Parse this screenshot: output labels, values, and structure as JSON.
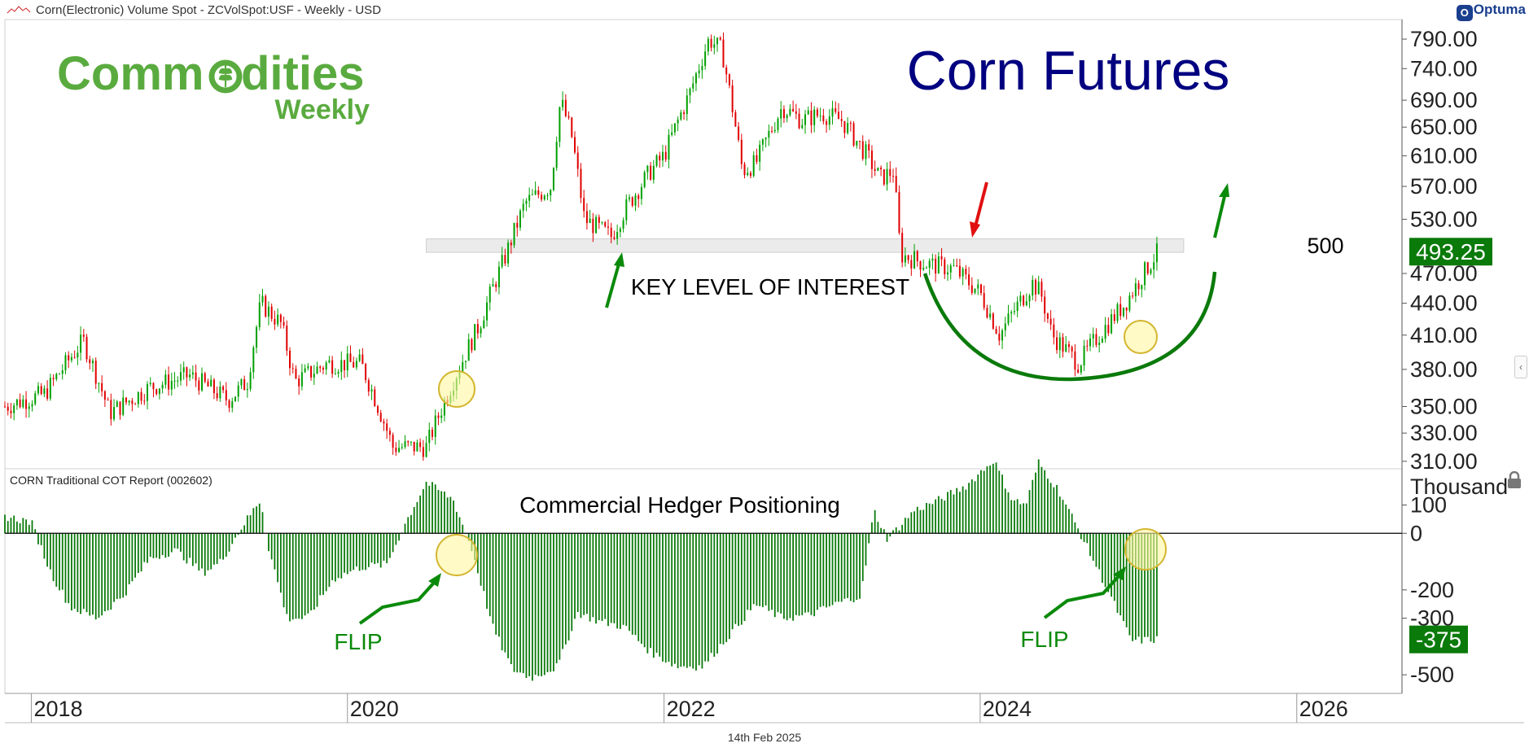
{
  "header": {
    "title": "Corn(Electronic) Volume Spot - ZCVolSpot:USF - Weekly - USD",
    "brand": "Optuma"
  },
  "footer": {
    "date": "14th Feb 2025"
  },
  "logo": {
    "line1a": "Comm",
    "line1b": "dities",
    "line2": "Weekly",
    "color": "#5aab3f"
  },
  "colors": {
    "up": "#00a000",
    "down": "#e00000",
    "cot": "#0a7a0a",
    "title": "#000080",
    "arrow_green": "#0a8a0a",
    "arrow_red": "#e01010",
    "price_badge": "#0a7a0a"
  },
  "chart_data": [
    {
      "type": "candlestick",
      "title": "Corn Futures",
      "frequency": "Weekly",
      "unit": "USD",
      "x_range": [
        "2017-11-01",
        "2026-09-01"
      ],
      "x_ticks": [
        "2018",
        "2020",
        "2022",
        "2024",
        "2026"
      ],
      "y_ticks": [
        "790.00",
        "740.00",
        "690.00",
        "650.00",
        "610.00",
        "570.00",
        "530.00",
        "470.00",
        "440.00",
        "410.00",
        "380.00",
        "350.00",
        "330.00",
        "310.00"
      ],
      "y_scale": "log",
      "ylim": [
        306,
        825
      ],
      "last_price": "493.25",
      "key_level": {
        "value": 500,
        "label": "500",
        "from": "2020-07-01",
        "to": "2025-04-15"
      },
      "annotations": [
        "KEY LEVEL OF INTEREST"
      ],
      "close_path": [
        [
          "2017-11-01",
          350
        ],
        [
          "2018-02-01",
          360
        ],
        [
          "2018-05-01",
          405
        ],
        [
          "2018-07-01",
          345
        ],
        [
          "2018-10-01",
          365
        ],
        [
          "2019-01-01",
          375
        ],
        [
          "2019-04-01",
          355
        ],
        [
          "2019-05-15",
          370
        ],
        [
          "2019-06-15",
          440
        ],
        [
          "2019-08-01",
          420
        ],
        [
          "2019-09-01",
          370
        ],
        [
          "2019-11-15",
          385
        ],
        [
          "2020-02-01",
          385
        ],
        [
          "2020-04-15",
          320
        ],
        [
          "2020-07-01",
          320
        ],
        [
          "2020-09-01",
          370
        ],
        [
          "2020-11-01",
          420
        ],
        [
          "2021-01-01",
          490
        ],
        [
          "2021-02-15",
          550
        ],
        [
          "2021-04-15",
          570
        ],
        [
          "2021-05-07",
          690
        ],
        [
          "2021-06-01",
          640
        ],
        [
          "2021-07-01",
          530
        ],
        [
          "2021-09-01",
          510
        ],
        [
          "2021-10-01",
          540
        ],
        [
          "2021-12-01",
          590
        ],
        [
          "2022-01-01",
          610
        ],
        [
          "2022-03-01",
          700
        ],
        [
          "2022-04-15",
          790
        ],
        [
          "2022-05-15",
          770
        ],
        [
          "2022-07-01",
          590
        ],
        [
          "2022-08-01",
          600
        ],
        [
          "2022-10-01",
          680
        ],
        [
          "2022-11-15",
          660
        ],
        [
          "2023-01-01",
          670
        ],
        [
          "2023-02-15",
          660
        ],
        [
          "2023-04-15",
          610
        ],
        [
          "2023-05-15",
          580
        ],
        [
          "2023-06-15",
          590
        ],
        [
          "2023-07-01",
          490
        ],
        [
          "2023-09-01",
          480
        ],
        [
          "2023-11-01",
          475
        ],
        [
          "2024-01-01",
          450
        ],
        [
          "2024-02-15",
          410
        ],
        [
          "2024-03-15",
          430
        ],
        [
          "2024-05-01",
          460
        ],
        [
          "2024-05-20",
          450
        ],
        [
          "2024-06-15",
          410
        ],
        [
          "2024-08-15",
          385
        ],
        [
          "2024-10-01",
          410
        ],
        [
          "2024-12-01",
          440
        ],
        [
          "2025-02-14",
          493
        ]
      ]
    },
    {
      "type": "bar",
      "title": "CORN Traditional COT Report (002602)",
      "subtitle": "Commercial Hedger Positioning",
      "unit": "Thousand",
      "y_ticks": [
        "100",
        "0",
        "-200",
        "-300",
        "-500"
      ],
      "ylim": [
        -560,
        205
      ],
      "last_value": "-375",
      "annotations": [
        "FLIP",
        "FLIP"
      ],
      "net_position_path": [
        [
          "2017-11-01",
          60
        ],
        [
          "2018-01-01",
          40
        ],
        [
          "2018-02-15",
          -140
        ],
        [
          "2018-04-01",
          -260
        ],
        [
          "2018-06-01",
          -300
        ],
        [
          "2018-08-01",
          -220
        ],
        [
          "2018-10-01",
          -90
        ],
        [
          "2018-12-01",
          -60
        ],
        [
          "2019-02-01",
          -140
        ],
        [
          "2019-03-15",
          -100
        ],
        [
          "2019-05-01",
          20
        ],
        [
          "2019-06-15",
          120
        ],
        [
          "2019-07-01",
          -40
        ],
        [
          "2019-08-15",
          -300
        ],
        [
          "2019-10-01",
          -300
        ],
        [
          "2019-12-01",
          -160
        ],
        [
          "2020-02-01",
          -120
        ],
        [
          "2020-04-01",
          -110
        ],
        [
          "2020-05-15",
          40
        ],
        [
          "2020-07-01",
          180
        ],
        [
          "2020-09-01",
          120
        ],
        [
          "2020-10-15",
          -60
        ],
        [
          "2020-12-01",
          -330
        ],
        [
          "2021-01-15",
          -480
        ],
        [
          "2021-03-01",
          -510
        ],
        [
          "2021-05-01",
          -470
        ],
        [
          "2021-06-15",
          -280
        ],
        [
          "2021-08-01",
          -310
        ],
        [
          "2021-10-01",
          -330
        ],
        [
          "2021-12-01",
          -420
        ],
        [
          "2022-02-01",
          -470
        ],
        [
          "2022-04-01",
          -470
        ],
        [
          "2022-06-01",
          -360
        ],
        [
          "2022-08-01",
          -250
        ],
        [
          "2022-10-01",
          -300
        ],
        [
          "2022-12-01",
          -290
        ],
        [
          "2023-02-01",
          -250
        ],
        [
          "2023-04-01",
          -220
        ],
        [
          "2023-05-01",
          80
        ],
        [
          "2023-06-01",
          -20
        ],
        [
          "2023-08-01",
          80
        ],
        [
          "2023-10-01",
          120
        ],
        [
          "2023-12-01",
          170
        ],
        [
          "2024-02-01",
          260
        ],
        [
          "2024-03-15",
          120
        ],
        [
          "2024-04-15",
          100
        ],
        [
          "2024-05-15",
          250
        ],
        [
          "2024-07-01",
          150
        ],
        [
          "2024-09-01",
          -40
        ],
        [
          "2024-10-15",
          -180
        ],
        [
          "2024-12-15",
          -380
        ],
        [
          "2025-02-14",
          -375
        ]
      ]
    }
  ]
}
